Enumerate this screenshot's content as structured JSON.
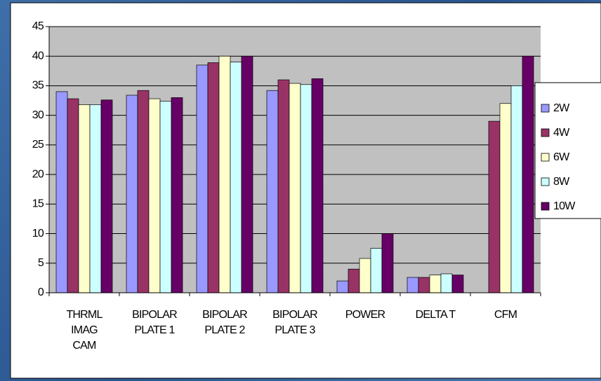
{
  "chart_data": {
    "type": "bar",
    "categories": [
      "THRML IMAG CAM",
      "BIPOLAR PLATE 1",
      "BIPOLAR PLATE 2",
      "BIPOLAR PLATE 3",
      "POWER",
      "DELTA T",
      "CFM"
    ],
    "series": [
      {
        "name": "2W",
        "color": "#9999ff",
        "values": [
          34,
          33.4,
          38.5,
          34.2,
          2,
          2.6,
          null
        ]
      },
      {
        "name": "4W",
        "color": "#993366",
        "values": [
          32.8,
          34.2,
          38.9,
          36,
          4,
          2.6,
          29
        ]
      },
      {
        "name": "6W",
        "color": "#ffffcc",
        "values": [
          31.8,
          32.8,
          40,
          35.4,
          5.8,
          3,
          32
        ]
      },
      {
        "name": "8W",
        "color": "#ccffff",
        "values": [
          31.8,
          32.4,
          39,
          35.2,
          7.5,
          3.2,
          35
        ]
      },
      {
        "name": "10W",
        "color": "#660066",
        "values": [
          32.6,
          33,
          40,
          36.2,
          10,
          3,
          40
        ]
      }
    ],
    "ylim": [
      0,
      45
    ],
    "yticks": [
      0,
      5,
      10,
      15,
      20,
      25,
      30,
      35,
      40,
      45
    ],
    "grid": true,
    "legend": "right"
  }
}
